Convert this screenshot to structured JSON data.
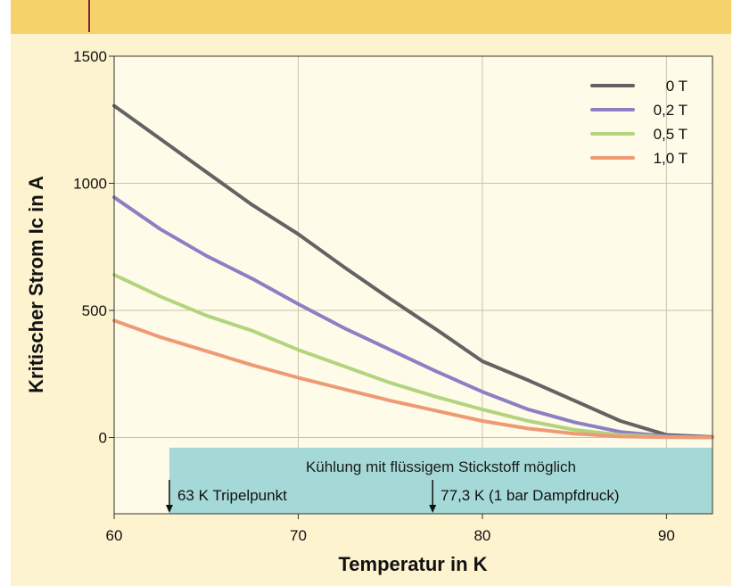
{
  "chart_data": {
    "type": "line",
    "xlabel": "Temperatur in K",
    "ylabel": "Kritischer Strom Ic in A",
    "xlim": [
      60,
      92.5
    ],
    "ylim": [
      -300,
      1500
    ],
    "xticks": [
      60,
      70,
      80,
      90
    ],
    "yticks": [
      0,
      500,
      1000,
      1500
    ],
    "grid": true,
    "legend_position": "top-right",
    "series": [
      {
        "name": "0 T",
        "color": "#636363",
        "x": [
          60,
          62.5,
          65,
          67.5,
          70,
          72.5,
          75,
          77.5,
          80,
          82.5,
          85,
          87.5,
          90,
          92.5
        ],
        "y": [
          1305,
          1175,
          1045,
          915,
          800,
          670,
          545,
          425,
          300,
          225,
          145,
          65,
          10,
          2
        ]
      },
      {
        "name": "0,2 T",
        "color": "#8c7fc4",
        "x": [
          60,
          62.5,
          65,
          67.5,
          70,
          72.5,
          75,
          77.5,
          80,
          82.5,
          85,
          87.5,
          90,
          92.5
        ],
        "y": [
          945,
          820,
          715,
          625,
          525,
          430,
          345,
          260,
          180,
          110,
          60,
          22,
          5,
          1
        ]
      },
      {
        "name": "0,5 T",
        "color": "#b3d47e",
        "x": [
          60,
          62.5,
          65,
          67.5,
          70,
          72.5,
          75,
          77.5,
          80,
          82.5,
          85,
          87.5,
          90,
          92.5
        ],
        "y": [
          640,
          555,
          480,
          420,
          345,
          280,
          215,
          160,
          110,
          65,
          30,
          10,
          2,
          0
        ]
      },
      {
        "name": "1,0 T",
        "color": "#ee9a74",
        "x": [
          60,
          62.5,
          65,
          67.5,
          70,
          72.5,
          75,
          77.5,
          80,
          82.5,
          85,
          87.5,
          90,
          92.5
        ],
        "y": [
          460,
          395,
          340,
          285,
          235,
          190,
          145,
          105,
          65,
          35,
          15,
          4,
          1,
          0
        ]
      }
    ],
    "annotation_band": {
      "x_from": 63,
      "x_to": 92.5,
      "y_from": -300,
      "y_to": -40,
      "color": "#a5d9d7",
      "title": "Kühlung mit flüssigem Stickstoff möglich",
      "markers": [
        {
          "x": 63,
          "label": "63 K Tripelpunkt"
        },
        {
          "x": 77.3,
          "label": "77,3 K (1 bar Dampfdruck)"
        }
      ]
    }
  },
  "colors": {
    "banner": "#f6d36a",
    "plot_background": "#fffbe9",
    "page_background": "#fdf3cf",
    "grid": "#c9c4a8",
    "banner_marker": "#8b1e3f"
  }
}
